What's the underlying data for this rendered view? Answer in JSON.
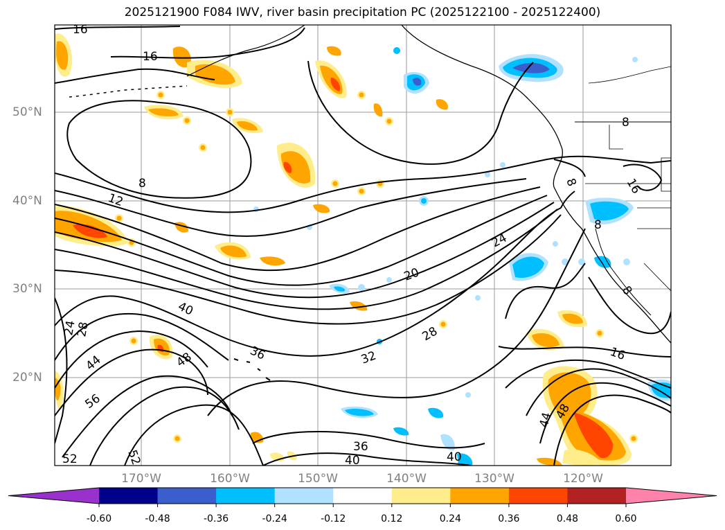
{
  "title": "2025121900 F084 IWV, river basin precipitation PC (2025122100 - 2025122400)",
  "lat_labels": [
    "50°N",
    "40°N",
    "30°N",
    "20°N"
  ],
  "lon_labels": [
    "170°W",
    "160°W",
    "150°W",
    "140°W",
    "130°W",
    "120°W"
  ],
  "contour_labels": [
    "16",
    "16",
    "8",
    "12",
    "24",
    "20",
    "8",
    "8",
    "16",
    "8",
    "8",
    "40",
    "24",
    "28",
    "36",
    "48",
    "44",
    "56",
    "32",
    "28",
    "16",
    "44",
    "48",
    "36",
    "40",
    "40",
    "52",
    "52"
  ],
  "colorbar": {
    "ticks": [
      "-0.60",
      "-0.48",
      "-0.36",
      "-0.24",
      "-0.12",
      "0.12",
      "0.24",
      "0.36",
      "0.48",
      "0.60"
    ],
    "colors": [
      "#9932cc",
      "#00008b",
      "#3a5fcd",
      "#00bfff",
      "#b0e2ff",
      "#ffffff",
      "#ffec8b",
      "#ffa500",
      "#ff4500",
      "#b22222",
      "#ff82ab"
    ]
  }
}
